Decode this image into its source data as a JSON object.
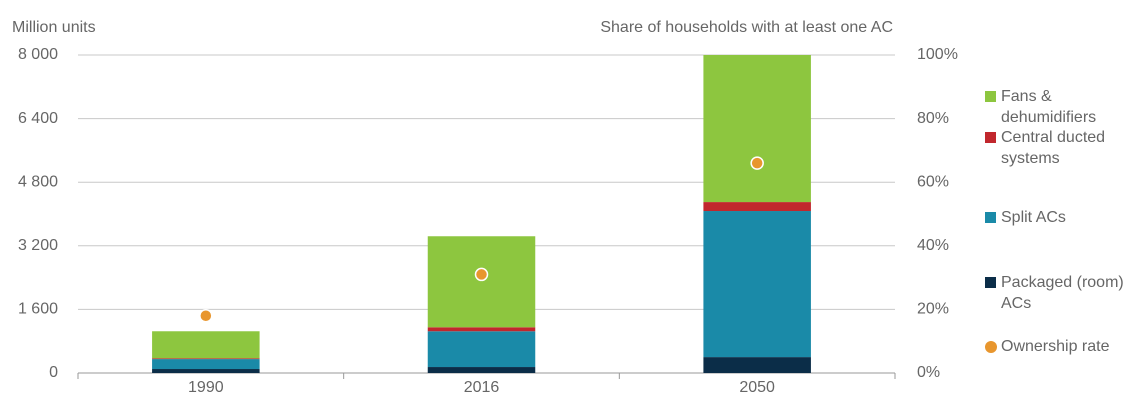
{
  "chart_data": {
    "type": "stacked_bar",
    "y_axis_label": "Million units",
    "y2_axis_label": "Share of households with at least one AC",
    "categories": [
      "1990",
      "2016",
      "2050"
    ],
    "series": [
      {
        "name": "Packaged (room) ACs",
        "color": "#0b2d48",
        "values": [
          100,
          150,
          400
        ]
      },
      {
        "name": "Split ACs",
        "color": "#1a8aa8",
        "values": [
          250,
          900,
          3675
        ]
      },
      {
        "name": "Central ducted systems",
        "color": "#c1272d",
        "values": [
          20,
          100,
          225
        ]
      },
      {
        "name": "Fans & dehumidifiers",
        "color": "#8dc63f",
        "values": [
          680,
          2290,
          3700
        ]
      },
      {
        "name": "Ownership rate",
        "color": "#e8962e",
        "values": [
          18,
          31,
          66
        ],
        "axis": "y2",
        "type": "scatter"
      }
    ],
    "ylim": [
      0,
      8000
    ],
    "yticks": [
      0,
      {
        "value": 1600,
        "label": "1 600"
      },
      {
        "value": 3200,
        "label": "3 200"
      },
      {
        "value": 4800,
        "label": "4 800"
      },
      {
        "value": 6400,
        "label": "6 400"
      },
      {
        "value": 8000,
        "label": "8 000"
      }
    ],
    "y2lim": [
      0,
      100
    ],
    "y2ticks": [
      {
        "value": 0,
        "label": "0%"
      },
      {
        "value": 20,
        "label": "20%"
      },
      {
        "value": 40,
        "label": "40%"
      },
      {
        "value": 60,
        "label": "60%"
      },
      {
        "value": 80,
        "label": "80%"
      },
      {
        "value": 100,
        "label": "100%"
      }
    ],
    "grid": true
  }
}
